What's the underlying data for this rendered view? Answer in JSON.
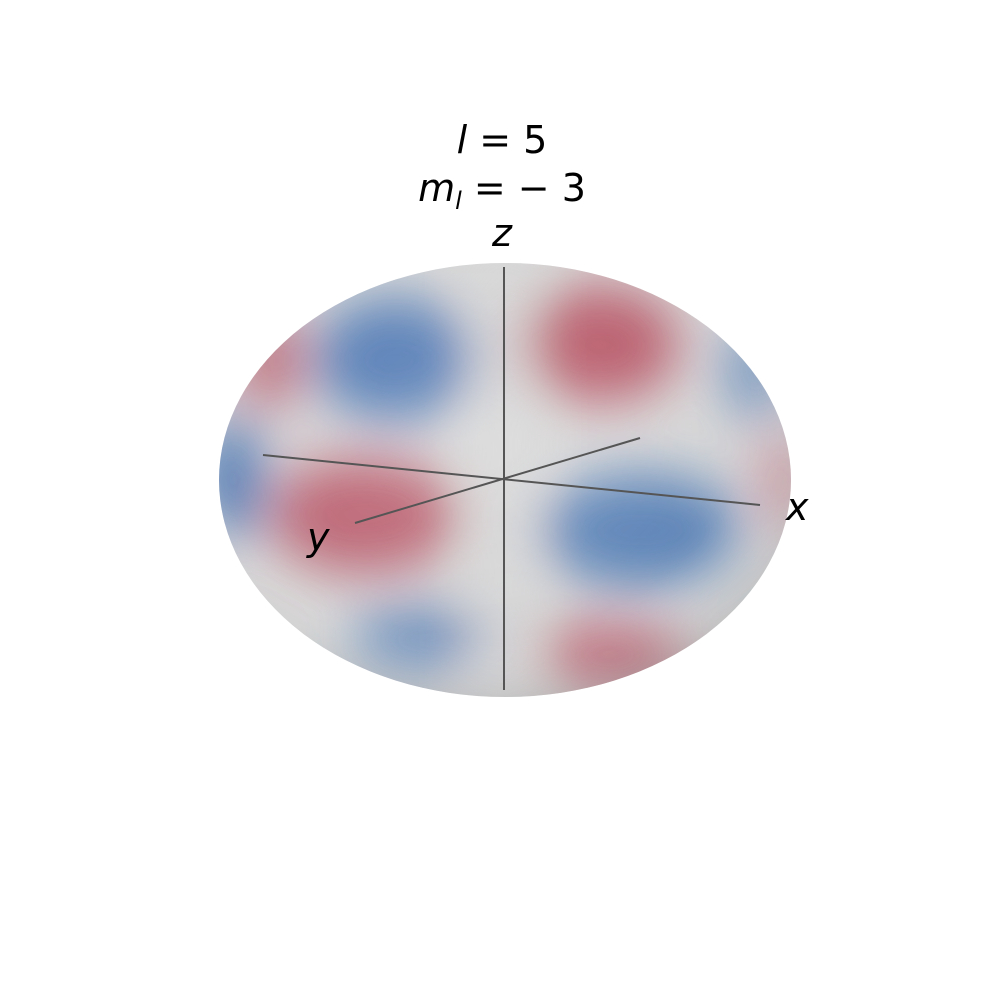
{
  "title": {
    "l_symbol": "l",
    "l_value": "= 5",
    "ml_symbol": "m",
    "ml_subscript": "l",
    "ml_value": "= − 3"
  },
  "axes": {
    "x": "x",
    "y": "y",
    "z": "z"
  },
  "colors": {
    "positive": "#b5495b",
    "negative": "#3f6fb0",
    "neutral": "#d9d9d9",
    "axis_line": "#555555"
  }
}
